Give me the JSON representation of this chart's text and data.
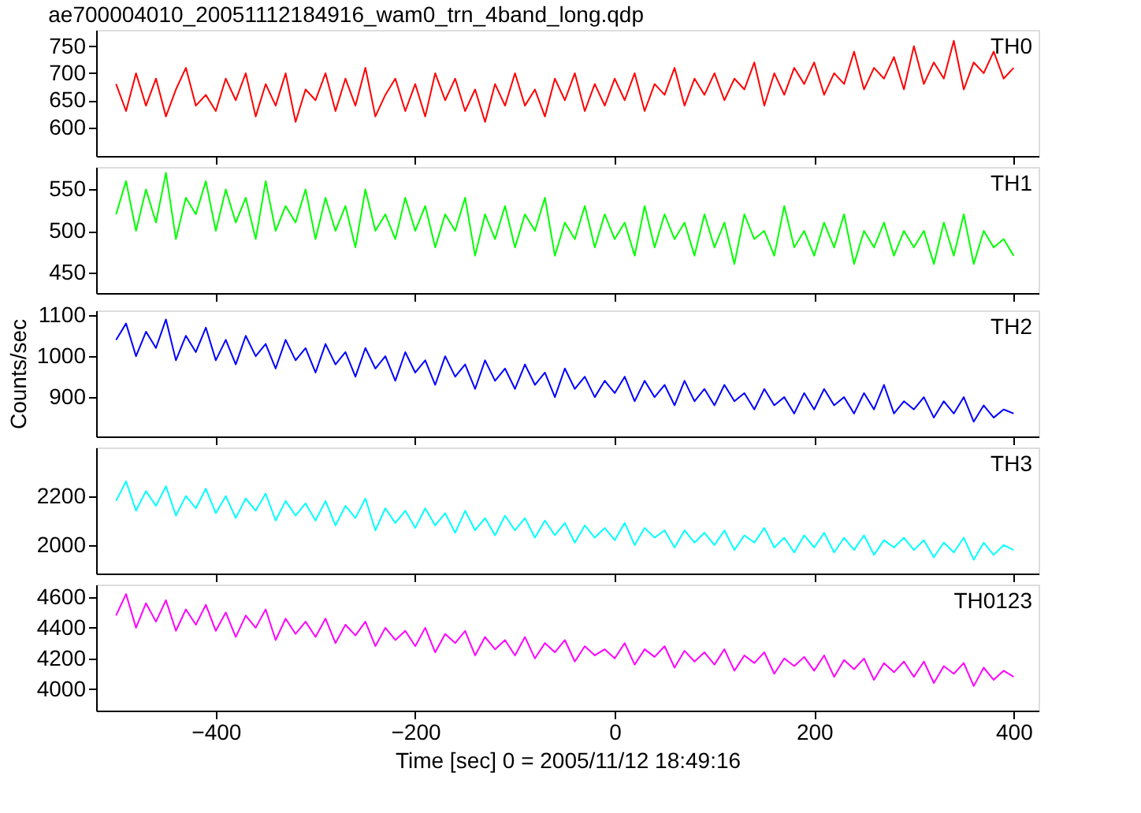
{
  "chart_data": [
    {
      "type": "line",
      "title": "ae700004010_20051112184916_wam0_trn_4band_long.qdp",
      "annotations": [
        "TH0"
      ],
      "xlim": [
        -520,
        425
      ],
      "xticks": [
        -400,
        -200,
        0,
        200,
        400
      ],
      "ylim": [
        547,
        780
      ],
      "yticks": [
        600,
        650,
        700,
        750
      ],
      "tick_labels": "y",
      "x": [
        -500,
        -490,
        -480,
        -470,
        -460,
        -450,
        -440,
        -430,
        -420,
        -410,
        -400,
        -390,
        -380,
        -370,
        -360,
        -350,
        -340,
        -330,
        -320,
        -310,
        -300,
        -290,
        -280,
        -270,
        -260,
        -250,
        -240,
        -230,
        -220,
        -210,
        -200,
        -190,
        -180,
        -170,
        -160,
        -150,
        -140,
        -130,
        -120,
        -110,
        -100,
        -90,
        -80,
        -70,
        -60,
        -50,
        -40,
        -30,
        -20,
        -10,
        0,
        10,
        20,
        30,
        40,
        50,
        60,
        70,
        80,
        90,
        100,
        110,
        120,
        130,
        140,
        150,
        160,
        170,
        180,
        190,
        200,
        210,
        220,
        230,
        240,
        250,
        260,
        270,
        280,
        290,
        300,
        310,
        320,
        330,
        340,
        350,
        360,
        370,
        380,
        390,
        400
      ],
      "series": [
        {
          "color": "#ff0000",
          "values": [
            680,
            630,
            700,
            640,
            690,
            620,
            670,
            710,
            640,
            660,
            630,
            690,
            650,
            700,
            620,
            680,
            640,
            700,
            610,
            670,
            650,
            700,
            630,
            690,
            640,
            710,
            620,
            660,
            690,
            630,
            680,
            620,
            700,
            650,
            690,
            630,
            670,
            610,
            680,
            640,
            700,
            640,
            670,
            620,
            690,
            650,
            700,
            630,
            680,
            640,
            690,
            650,
            700,
            630,
            680,
            660,
            710,
            640,
            690,
            660,
            700,
            650,
            690,
            670,
            720,
            640,
            700,
            660,
            710,
            680,
            720,
            660,
            700,
            680,
            740,
            670,
            710,
            690,
            730,
            670,
            750,
            680,
            720,
            690,
            760,
            670,
            720,
            700,
            740,
            690,
            710
          ]
        }
      ]
    },
    {
      "type": "line",
      "annotations": [
        "TH1"
      ],
      "xlim": [
        -520,
        425
      ],
      "xticks": [
        -400,
        -200,
        0,
        200,
        400
      ],
      "ylim": [
        425,
        577
      ],
      "yticks": [
        450,
        500,
        550
      ],
      "tick_labels": "y",
      "x": [
        -500,
        -490,
        -480,
        -470,
        -460,
        -450,
        -440,
        -430,
        -420,
        -410,
        -400,
        -390,
        -380,
        -370,
        -360,
        -350,
        -340,
        -330,
        -320,
        -310,
        -300,
        -290,
        -280,
        -270,
        -260,
        -250,
        -240,
        -230,
        -220,
        -210,
        -200,
        -190,
        -180,
        -170,
        -160,
        -150,
        -140,
        -130,
        -120,
        -110,
        -100,
        -90,
        -80,
        -70,
        -60,
        -50,
        -40,
        -30,
        -20,
        -10,
        0,
        10,
        20,
        30,
        40,
        50,
        60,
        70,
        80,
        90,
        100,
        110,
        120,
        130,
        140,
        150,
        160,
        170,
        180,
        190,
        200,
        210,
        220,
        230,
        240,
        250,
        260,
        270,
        280,
        290,
        300,
        310,
        320,
        330,
        340,
        350,
        360,
        370,
        380,
        390,
        400
      ],
      "series": [
        {
          "color": "#00ff00",
          "values": [
            520,
            560,
            500,
            550,
            510,
            570,
            490,
            540,
            520,
            560,
            500,
            550,
            510,
            540,
            490,
            560,
            500,
            530,
            510,
            550,
            490,
            540,
            500,
            530,
            480,
            550,
            500,
            520,
            490,
            540,
            500,
            530,
            480,
            520,
            500,
            540,
            470,
            520,
            490,
            530,
            480,
            520,
            500,
            540,
            470,
            510,
            490,
            530,
            480,
            520,
            490,
            510,
            470,
            530,
            480,
            520,
            490,
            510,
            470,
            520,
            480,
            510,
            460,
            520,
            490,
            500,
            470,
            530,
            480,
            500,
            470,
            510,
            480,
            520,
            460,
            500,
            480,
            510,
            470,
            500,
            480,
            500,
            460,
            510,
            470,
            520,
            460,
            500,
            480,
            490,
            470
          ]
        }
      ]
    },
    {
      "type": "line",
      "ylabel": "Counts/sec",
      "annotations": [
        "TH2"
      ],
      "xlim": [
        -520,
        425
      ],
      "xticks": [
        -400,
        -200,
        0,
        200,
        400
      ],
      "ylim": [
        804,
        1112
      ],
      "yticks": [
        900,
        1000,
        1100
      ],
      "tick_labels": "y",
      "x": [
        -500,
        -490,
        -480,
        -470,
        -460,
        -450,
        -440,
        -430,
        -420,
        -410,
        -400,
        -390,
        -380,
        -370,
        -360,
        -350,
        -340,
        -330,
        -320,
        -310,
        -300,
        -290,
        -280,
        -270,
        -260,
        -250,
        -240,
        -230,
        -220,
        -210,
        -200,
        -190,
        -180,
        -170,
        -160,
        -150,
        -140,
        -130,
        -120,
        -110,
        -100,
        -90,
        -80,
        -70,
        -60,
        -50,
        -40,
        -30,
        -20,
        -10,
        0,
        10,
        20,
        30,
        40,
        50,
        60,
        70,
        80,
        90,
        100,
        110,
        120,
        130,
        140,
        150,
        160,
        170,
        180,
        190,
        200,
        210,
        220,
        230,
        240,
        250,
        260,
        270,
        280,
        290,
        300,
        310,
        320,
        330,
        340,
        350,
        360,
        370,
        380,
        390,
        400
      ],
      "series": [
        {
          "color": "#0000ff",
          "values": [
            1040,
            1080,
            1000,
            1060,
            1020,
            1090,
            990,
            1050,
            1010,
            1070,
            990,
            1040,
            980,
            1050,
            1000,
            1030,
            970,
            1040,
            990,
            1020,
            960,
            1030,
            980,
            1010,
            950,
            1020,
            970,
            1000,
            940,
            1010,
            960,
            990,
            930,
            1000,
            950,
            980,
            920,
            990,
            940,
            970,
            920,
            980,
            930,
            960,
            900,
            970,
            920,
            950,
            900,
            940,
            910,
            950,
            890,
            940,
            900,
            930,
            880,
            940,
            890,
            920,
            880,
            930,
            890,
            910,
            870,
            920,
            880,
            900,
            860,
            910,
            870,
            920,
            880,
            900,
            860,
            910,
            870,
            930,
            860,
            890,
            870,
            900,
            850,
            890,
            860,
            900,
            840,
            880,
            850,
            870,
            860
          ]
        }
      ]
    },
    {
      "type": "line",
      "annotations": [
        "TH3"
      ],
      "xlim": [
        -520,
        425
      ],
      "xticks": [
        -400,
        -200,
        0,
        200,
        400
      ],
      "ylim": [
        1884,
        2398
      ],
      "yticks": [
        2000,
        2200
      ],
      "tick_labels": "y",
      "x": [
        -500,
        -490,
        -480,
        -470,
        -460,
        -450,
        -440,
        -430,
        -420,
        -410,
        -400,
        -390,
        -380,
        -370,
        -360,
        -350,
        -340,
        -330,
        -320,
        -310,
        -300,
        -290,
        -280,
        -270,
        -260,
        -250,
        -240,
        -230,
        -220,
        -210,
        -200,
        -190,
        -180,
        -170,
        -160,
        -150,
        -140,
        -130,
        -120,
        -110,
        -100,
        -90,
        -80,
        -70,
        -60,
        -50,
        -40,
        -30,
        -20,
        -10,
        0,
        10,
        20,
        30,
        40,
        50,
        60,
        70,
        80,
        90,
        100,
        110,
        120,
        130,
        140,
        150,
        160,
        170,
        180,
        190,
        200,
        210,
        220,
        230,
        240,
        250,
        260,
        270,
        280,
        290,
        300,
        310,
        320,
        330,
        340,
        350,
        360,
        370,
        380,
        390,
        400
      ],
      "series": [
        {
          "color": "#00ffff",
          "values": [
            2180,
            2260,
            2140,
            2220,
            2160,
            2240,
            2120,
            2200,
            2150,
            2230,
            2130,
            2200,
            2110,
            2190,
            2140,
            2210,
            2100,
            2180,
            2120,
            2170,
            2100,
            2180,
            2080,
            2160,
            2110,
            2190,
            2060,
            2150,
            2090,
            2140,
            2070,
            2150,
            2080,
            2130,
            2050,
            2140,
            2060,
            2110,
            2040,
            2120,
            2060,
            2110,
            2030,
            2100,
            2040,
            2090,
            2010,
            2080,
            2030,
            2070,
            2020,
            2090,
            2000,
            2070,
            2030,
            2060,
            1990,
            2060,
            2010,
            2050,
            2000,
            2060,
            1980,
            2040,
            2010,
            2070,
            1990,
            2030,
            1970,
            2040,
            1990,
            2050,
            1970,
            2030,
            1980,
            2040,
            1960,
            2020,
            1990,
            2030,
            1980,
            2020,
            1950,
            2010,
            1970,
            2030,
            1940,
            2010,
            1960,
            2000,
            1980
          ]
        }
      ]
    },
    {
      "type": "line",
      "xlabel": "Time [sec] 0 = 2005/11/12 18:49:16",
      "annotations": [
        "TH0123"
      ],
      "xlim": [
        -520,
        425
      ],
      "xticks": [
        -400,
        -200,
        0,
        200,
        400
      ],
      "ylim": [
        3860,
        4682
      ],
      "yticks": [
        4000,
        4200,
        4400,
        4600
      ],
      "x": [
        -500,
        -490,
        -480,
        -470,
        -460,
        -450,
        -440,
        -430,
        -420,
        -410,
        -400,
        -390,
        -380,
        -370,
        -360,
        -350,
        -340,
        -330,
        -320,
        -310,
        -300,
        -290,
        -280,
        -270,
        -260,
        -250,
        -240,
        -230,
        -220,
        -210,
        -200,
        -190,
        -180,
        -170,
        -160,
        -150,
        -140,
        -130,
        -120,
        -110,
        -100,
        -90,
        -80,
        -70,
        -60,
        -50,
        -40,
        -30,
        -20,
        -10,
        0,
        10,
        20,
        30,
        40,
        50,
        60,
        70,
        80,
        90,
        100,
        110,
        120,
        130,
        140,
        150,
        160,
        170,
        180,
        190,
        200,
        210,
        220,
        230,
        240,
        250,
        260,
        270,
        280,
        290,
        300,
        310,
        320,
        330,
        340,
        350,
        360,
        370,
        380,
        390,
        400
      ],
      "series": [
        {
          "color": "#ff00ff",
          "values": [
            4480,
            4620,
            4400,
            4560,
            4440,
            4580,
            4380,
            4520,
            4420,
            4550,
            4380,
            4500,
            4340,
            4480,
            4400,
            4520,
            4320,
            4460,
            4360,
            4440,
            4340,
            4460,
            4300,
            4420,
            4350,
            4440,
            4280,
            4400,
            4320,
            4380,
            4280,
            4400,
            4240,
            4360,
            4300,
            4380,
            4220,
            4340,
            4260,
            4320,
            4220,
            4340,
            4200,
            4300,
            4240,
            4320,
            4180,
            4280,
            4220,
            4260,
            4200,
            4300,
            4160,
            4260,
            4210,
            4280,
            4140,
            4250,
            4180,
            4240,
            4160,
            4260,
            4120,
            4220,
            4170,
            4240,
            4100,
            4200,
            4150,
            4210,
            4120,
            4220,
            4080,
            4190,
            4130,
            4200,
            4060,
            4170,
            4110,
            4180,
            4080,
            4180,
            4040,
            4150,
            4100,
            4170,
            4020,
            4140,
            4060,
            4120,
            4080
          ]
        }
      ]
    }
  ]
}
